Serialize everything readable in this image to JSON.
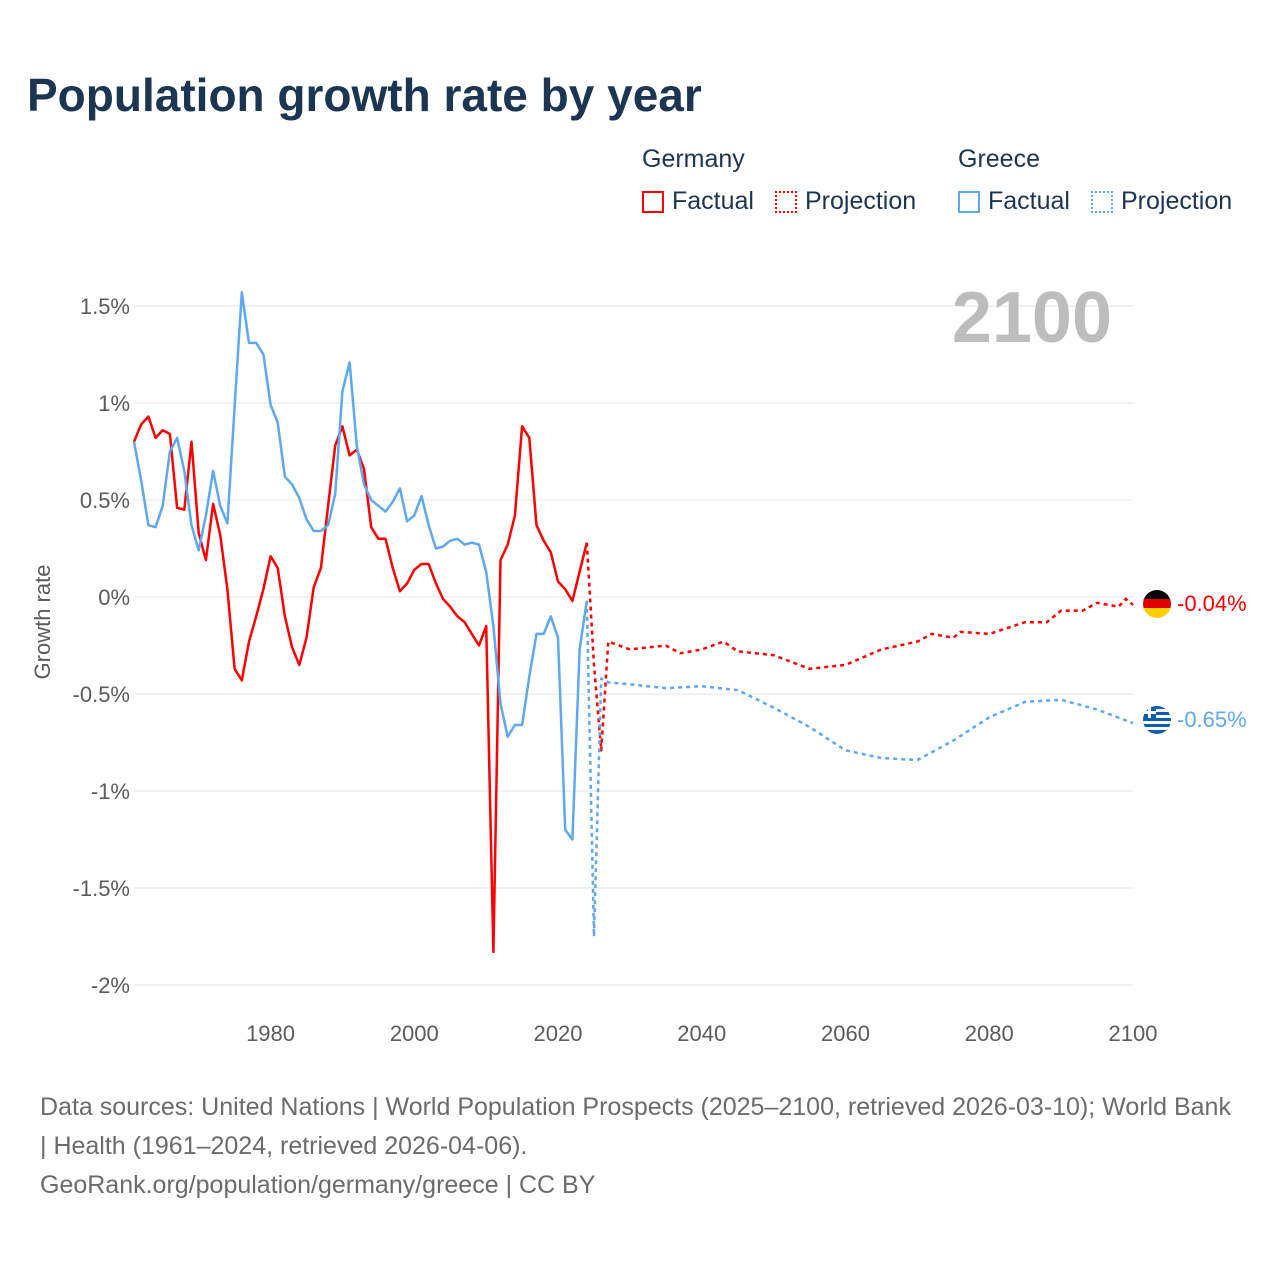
{
  "title": "Population growth rate by year",
  "legend": {
    "groups": [
      {
        "name": "Germany",
        "color": "#ff0000",
        "factual": "Factual",
        "projection": "Projection"
      },
      {
        "name": "Greece",
        "color": "#5ea8ef",
        "factual": "Factual",
        "projection": "Projection"
      }
    ]
  },
  "year_overlay": "2100",
  "end_labels": {
    "germany": "-0.04%",
    "greece": "-0.65%"
  },
  "footer": {
    "sources": "Data sources: United Nations | World Population Prospects (2025–2100, retrieved 2026-03-10); World Bank | Health (1961–2024, retrieved 2026-04-06).",
    "credit": "GeoRank.org/population/germany/greece | CC BY"
  },
  "chart_data": {
    "type": "line",
    "title": "Population growth rate by year",
    "xlabel": "",
    "ylabel": "Growth rate",
    "xlim": [
      1961,
      2100
    ],
    "ylim": [
      -2,
      1.6
    ],
    "xticks": [
      1980,
      2000,
      2020,
      2040,
      2060,
      2080,
      2100
    ],
    "yticks": [
      {
        "v": 1.5,
        "label": "1.5%"
      },
      {
        "v": 1,
        "label": "1%"
      },
      {
        "v": 0.5,
        "label": "0.5%"
      },
      {
        "v": 0,
        "label": "0%"
      },
      {
        "v": -0.5,
        "label": "-0.5%"
      },
      {
        "v": -1,
        "label": "-1%"
      },
      {
        "v": -1.5,
        "label": "-1.5%"
      },
      {
        "v": -2,
        "label": "-2%"
      }
    ],
    "grid": true,
    "legend_position": "top-right",
    "series": [
      {
        "name": "Germany Factual",
        "color": "#ff0000",
        "dashed": false,
        "x_start": 1961,
        "values": [
          0.8,
          0.89,
          0.93,
          0.82,
          0.86,
          0.84,
          0.46,
          0.45,
          0.8,
          0.33,
          0.19,
          0.48,
          0.32,
          0.04,
          -0.37,
          -0.43,
          -0.23,
          -0.1,
          0.04,
          0.21,
          0.15,
          -0.1,
          -0.26,
          -0.35,
          -0.21,
          0.05,
          0.15,
          0.47,
          0.78,
          0.88,
          0.73,
          0.76,
          0.66,
          0.36,
          0.3,
          0.3,
          0.15,
          0.03,
          0.07,
          0.14,
          0.17,
          0.17,
          0.07,
          -0.01,
          -0.05,
          -0.1,
          -0.13,
          -0.19,
          -0.25,
          -0.15,
          -1.83,
          0.19,
          0.27,
          0.42,
          0.88,
          0.82,
          0.37,
          0.29,
          0.23,
          0.08,
          0.04,
          -0.02,
          0.13,
          0.28
        ]
      },
      {
        "name": "Germany Projection",
        "color": "#ff0000",
        "dashed": true,
        "x": [
          2024,
          2025,
          2026,
          2027,
          2030,
          2035,
          2037,
          2040,
          2043,
          2045,
          2050,
          2055,
          2060,
          2065,
          2070,
          2072,
          2075,
          2076,
          2080,
          2085,
          2088,
          2090,
          2093,
          2095,
          2098,
          2099,
          2100
        ],
        "values": [
          0.28,
          -0.35,
          -0.79,
          -0.23,
          -0.27,
          -0.25,
          -0.29,
          -0.27,
          -0.23,
          -0.28,
          -0.3,
          -0.37,
          -0.35,
          -0.27,
          -0.23,
          -0.19,
          -0.21,
          -0.18,
          -0.19,
          -0.13,
          -0.13,
          -0.07,
          -0.07,
          -0.03,
          -0.05,
          -0.01,
          -0.04
        ]
      },
      {
        "name": "Greece Factual",
        "color": "#5ea8ef",
        "dashed": false,
        "x_start": 1961,
        "values": [
          0.8,
          0.6,
          0.37,
          0.36,
          0.47,
          0.75,
          0.82,
          0.65,
          0.37,
          0.24,
          0.42,
          0.65,
          0.47,
          0.38,
          0.98,
          1.57,
          1.31,
          1.31,
          1.25,
          0.99,
          0.9,
          0.62,
          0.58,
          0.51,
          0.4,
          0.34,
          0.34,
          0.37,
          0.53,
          1.06,
          1.21,
          0.78,
          0.58,
          0.5,
          0.47,
          0.44,
          0.49,
          0.56,
          0.39,
          0.42,
          0.52,
          0.37,
          0.25,
          0.26,
          0.29,
          0.3,
          0.27,
          0.28,
          0.27,
          0.13,
          -0.15,
          -0.55,
          -0.72,
          -0.66,
          -0.66,
          -0.41,
          -0.19,
          -0.19,
          -0.1,
          -0.21,
          -1.2,
          -1.25,
          -0.27,
          -0.02
        ]
      },
      {
        "name": "Greece Projection",
        "color": "#5ea8ef",
        "dashed": true,
        "x": [
          2024,
          2025,
          2026,
          2027,
          2030,
          2035,
          2040,
          2045,
          2050,
          2055,
          2060,
          2065,
          2070,
          2075,
          2080,
          2085,
          2090,
          2095,
          2100
        ],
        "values": [
          -0.02,
          -1.75,
          -0.42,
          -0.44,
          -0.45,
          -0.47,
          -0.46,
          -0.48,
          -0.57,
          -0.67,
          -0.79,
          -0.83,
          -0.84,
          -0.74,
          -0.62,
          -0.54,
          -0.53,
          -0.58,
          -0.65
        ]
      }
    ]
  }
}
